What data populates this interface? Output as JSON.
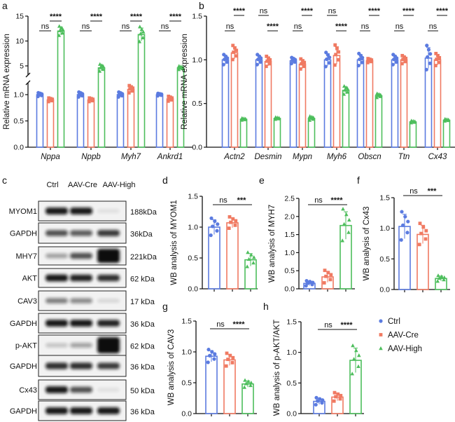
{
  "colors": {
    "Ctrl": "#5B7BE0",
    "AAV-Cre": "#F07A62",
    "AAV-High": "#4DBE5C"
  },
  "legend": [
    {
      "label": "Ctrl",
      "marker": "circle"
    },
    {
      "label": "AAV-Cre",
      "marker": "square"
    },
    {
      "label": "AAV-High",
      "marker": "triangle"
    }
  ],
  "panel_letters": {
    "a": "a",
    "b": "b",
    "c": "c",
    "d": "d",
    "e": "e",
    "f": "f",
    "g": "g",
    "h": "h"
  },
  "blot": {
    "lanes": [
      "Ctrl",
      "AAV-Cre",
      "AAV-High"
    ],
    "rows": [
      {
        "protein": "MYOM1",
        "kda": "188kDa",
        "intensity": [
          0.95,
          0.95,
          0.08
        ]
      },
      {
        "protein": "GAPDH",
        "kda": "36kDa",
        "intensity": [
          0.7,
          0.65,
          0.8
        ]
      },
      {
        "protein": "MHY7",
        "kda": "221kDa",
        "intensity": [
          0.35,
          0.7,
          1.0
        ]
      },
      {
        "protein": "AKT",
        "kda": "62 kDa",
        "intensity": [
          0.95,
          0.9,
          0.85
        ]
      },
      {
        "protein": "CAV3",
        "kda": "17 kDa",
        "intensity": [
          0.5,
          0.45,
          0.12
        ]
      },
      {
        "protein": "GAPDH",
        "kda": "36 kDa",
        "intensity": [
          0.95,
          0.95,
          0.9
        ]
      },
      {
        "protein": "p-AKT",
        "kda": "62 kDa",
        "intensity": [
          0.2,
          0.35,
          1.0
        ]
      },
      {
        "protein": "GAPDH",
        "kda": "36 kDa",
        "intensity": [
          0.85,
          0.85,
          0.8
        ]
      },
      {
        "protein": "Cx43",
        "kda": "50 kDa",
        "intensity": [
          0.95,
          0.7,
          0.08
        ]
      },
      {
        "protein": "GAPDH",
        "kda": "36 kDa",
        "intensity": [
          0.95,
          0.95,
          0.95
        ]
      }
    ]
  },
  "chart_data": [
    {
      "id": "a",
      "type": "bar",
      "ylabel": "Relative mRNA expression",
      "y_axis_break": true,
      "yticks": [
        0.0,
        0.5,
        1.0,
        5,
        10,
        15
      ],
      "series_names": [
        "Ctrl",
        "AAV-Cre",
        "AAV-High"
      ],
      "categories": [
        "Nppa",
        "Nppb",
        "Myh7",
        "Ankrd1"
      ],
      "values": [
        [
          1.0,
          0.9,
          12.0
        ],
        [
          1.0,
          0.9,
          4.6
        ],
        [
          1.0,
          1.1,
          11.3
        ],
        [
          1.0,
          0.92,
          4.6
        ]
      ],
      "sd": [
        [
          0.03,
          0.03,
          0.8
        ],
        [
          0.04,
          0.03,
          0.6
        ],
        [
          0.04,
          0.06,
          1.3
        ],
        [
          0.02,
          0.04,
          0.3
        ]
      ],
      "significance": [
        [
          {
            "pair": [
              0,
              1
            ],
            "label": "ns",
            "level": 1
          },
          {
            "pair": [
              1,
              2
            ],
            "label": "****",
            "level": 2
          }
        ],
        [
          {
            "pair": [
              0,
              1
            ],
            "label": "ns",
            "level": 1
          },
          {
            "pair": [
              1,
              2
            ],
            "label": "****",
            "level": 2
          }
        ],
        [
          {
            "pair": [
              0,
              1
            ],
            "label": "ns",
            "level": 1
          },
          {
            "pair": [
              1,
              2
            ],
            "label": "****",
            "level": 2
          }
        ],
        [
          {
            "pair": [
              0,
              1
            ],
            "label": "ns",
            "level": 1
          },
          {
            "pair": [
              1,
              2
            ],
            "label": "****",
            "level": 2
          }
        ]
      ]
    },
    {
      "id": "b",
      "type": "bar",
      "ylabel": "Relative mRNA expression",
      "ylim": [
        0,
        1.5
      ],
      "yticks": [
        0.0,
        0.5,
        1.0,
        1.5
      ],
      "series_names": [
        "Ctrl",
        "AAV-Cre",
        "AAV-High"
      ],
      "categories": [
        "Actn2",
        "Desmin",
        "Mypn",
        "Myh6",
        "Obscn",
        "Ttn",
        "Cx43"
      ],
      "values": [
        [
          1.0,
          1.08,
          0.32
        ],
        [
          1.0,
          0.98,
          0.33
        ],
        [
          0.99,
          0.95,
          0.33
        ],
        [
          1.0,
          1.05,
          0.65
        ],
        [
          1.0,
          0.99,
          0.59
        ],
        [
          1.0,
          1.0,
          0.29
        ],
        [
          1.02,
          1.0,
          0.31
        ]
      ],
      "sd": [
        [
          0.05,
          0.07,
          0.01
        ],
        [
          0.05,
          0.05,
          0.01
        ],
        [
          0.03,
          0.05,
          0.02
        ],
        [
          0.07,
          0.1,
          0.04
        ],
        [
          0.06,
          0.02,
          0.02
        ],
        [
          0.05,
          0.04,
          0.01
        ],
        [
          0.12,
          0.06,
          0.01
        ]
      ],
      "significance": [
        [
          {
            "pair": [
              0,
              1
            ],
            "label": "ns",
            "level": 1
          },
          {
            "pair": [
              1,
              2
            ],
            "label": "****",
            "level": 2
          }
        ],
        [
          {
            "pair": [
              0,
              1
            ],
            "label": "ns",
            "level": 2
          },
          {
            "pair": [
              1,
              2
            ],
            "label": "****",
            "level": 1
          }
        ],
        [
          {
            "pair": [
              0,
              1
            ],
            "label": "ns",
            "level": 1
          },
          {
            "pair": [
              1,
              2
            ],
            "label": "****",
            "level": 2
          }
        ],
        [
          {
            "pair": [
              0,
              1
            ],
            "label": "ns",
            "level": 2
          },
          {
            "pair": [
              1,
              2
            ],
            "label": "****",
            "level": 1
          }
        ],
        [
          {
            "pair": [
              0,
              1
            ],
            "label": "ns",
            "level": 1
          },
          {
            "pair": [
              1,
              2
            ],
            "label": "****",
            "level": 2
          }
        ],
        [
          {
            "pair": [
              0,
              1
            ],
            "label": "ns",
            "level": 1
          },
          {
            "pair": [
              1,
              2
            ],
            "label": "****",
            "level": 2
          }
        ],
        [
          {
            "pair": [
              0,
              1
            ],
            "label": "ns",
            "level": 1
          },
          {
            "pair": [
              1,
              2
            ],
            "label": "****",
            "level": 2
          }
        ]
      ]
    },
    {
      "id": "d",
      "type": "bar",
      "ylabel": "WB analysis of MYOM1",
      "ylim": [
        0,
        1.5
      ],
      "yticks": [
        0.0,
        0.5,
        1.0,
        1.5
      ],
      "series_names": [
        "Ctrl",
        "AAV-Cre",
        "AAV-High"
      ],
      "categories": [
        ""
      ],
      "values": [
        [
          1.0,
          1.07,
          0.47
        ]
      ],
      "sd": [
        [
          0.12,
          0.08,
          0.1
        ]
      ],
      "significance": [
        [
          {
            "pair": [
              0,
              1
            ],
            "label": "ns",
            "level": 1
          },
          {
            "pair": [
              1,
              2
            ],
            "label": "***",
            "level": 1
          }
        ]
      ]
    },
    {
      "id": "e",
      "type": "bar",
      "ylabel": "WB analysis of MYH7",
      "ylim": [
        0,
        2.5
      ],
      "yticks": [
        0.0,
        0.5,
        1.0,
        1.5,
        2.0,
        2.5
      ],
      "series_names": [
        "Ctrl",
        "AAV-Cre",
        "AAV-High"
      ],
      "categories": [
        ""
      ],
      "values": [
        [
          0.15,
          0.33,
          1.75
        ]
      ],
      "sd": [
        [
          0.06,
          0.15,
          0.38
        ]
      ],
      "significance": [
        [
          {
            "pair": [
              0,
              1
            ],
            "label": "ns",
            "level": 1
          },
          {
            "pair": [
              1,
              2
            ],
            "label": "****",
            "level": 1
          }
        ]
      ]
    },
    {
      "id": "f",
      "type": "bar",
      "ylabel": "WB analysis of Cx43",
      "ylim": [
        0,
        1.5
      ],
      "yticks": [
        0.0,
        0.5,
        1.0,
        1.5
      ],
      "series_names": [
        "Ctrl",
        "AAV-Cre",
        "AAV-High"
      ],
      "categories": [
        ""
      ],
      "values": [
        [
          1.03,
          0.9,
          0.18
        ]
      ],
      "sd": [
        [
          0.2,
          0.15,
          0.04
        ]
      ],
      "significance": [
        [
          {
            "pair": [
              0,
              1
            ],
            "label": "ns",
            "level": 1
          },
          {
            "pair": [
              1,
              2
            ],
            "label": "***",
            "level": 1
          }
        ]
      ]
    },
    {
      "id": "g",
      "type": "bar",
      "ylabel": "WB analysis of CAV3",
      "ylim": [
        0,
        1.5
      ],
      "yticks": [
        0.0,
        0.5,
        1.0,
        1.5
      ],
      "series_names": [
        "Ctrl",
        "AAV-Cre",
        "AAV-High"
      ],
      "categories": [
        ""
      ],
      "values": [
        [
          0.93,
          0.87,
          0.48
        ]
      ],
      "sd": [
        [
          0.09,
          0.09,
          0.05
        ]
      ],
      "significance": [
        [
          {
            "pair": [
              0,
              1
            ],
            "label": "ns",
            "level": 1
          },
          {
            "pair": [
              1,
              2
            ],
            "label": "****",
            "level": 1
          }
        ]
      ]
    },
    {
      "id": "h",
      "type": "bar",
      "ylabel": "WB analysis of p-AKT/AKT",
      "ylim": [
        0,
        1.5
      ],
      "yticks": [
        0.0,
        0.5,
        1.0,
        1.5
      ],
      "series_names": [
        "Ctrl",
        "AAV-Cre",
        "AAV-High"
      ],
      "categories": [
        ""
      ],
      "values": [
        [
          0.2,
          0.27,
          0.87
        ]
      ],
      "sd": [
        [
          0.05,
          0.06,
          0.2
        ]
      ],
      "significance": [
        [
          {
            "pair": [
              0,
              1
            ],
            "label": "ns",
            "level": 1
          },
          {
            "pair": [
              1,
              2
            ],
            "label": "****",
            "level": 1
          }
        ]
      ]
    }
  ]
}
